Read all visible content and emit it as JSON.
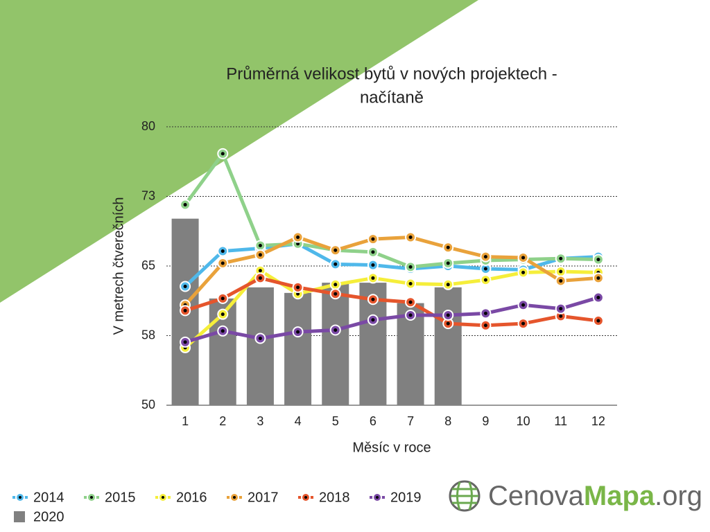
{
  "chart_data": {
    "type": "line",
    "title_lines": [
      "Průměrná velikost bytů v nových projektech -",
      "načítaně"
    ],
    "x_label": "Měsíc v roce",
    "y_label": "V metrech čtverečních",
    "categories": [
      "1",
      "2",
      "3",
      "4",
      "5",
      "6",
      "7",
      "8",
      "9",
      "10",
      "11",
      "12"
    ],
    "ylim": [
      50,
      80
    ],
    "yticks": [
      50,
      {
        "value": 57.5,
        "label": "58"
      },
      65,
      {
        "value": 72.5,
        "label": "73"
      },
      80
    ],
    "grid": true,
    "legend": "bottom-left",
    "series": [
      {
        "name": "2020",
        "type": "bar",
        "color": "#808080",
        "values": [
          70.1,
          61.5,
          62.7,
          62.1,
          63.2,
          63.2,
          61.0,
          62.7,
          null,
          null,
          null,
          null
        ]
      },
      {
        "name": "2014",
        "type": "line",
        "color": "#4fb8ea",
        "values": [
          62.8,
          66.6,
          66.9,
          67.4,
          65.2,
          65.1,
          64.7,
          65.0,
          64.7,
          64.6,
          65.8,
          66.0
        ]
      },
      {
        "name": "2015",
        "type": "line",
        "color": "#8fd18a",
        "values": [
          71.6,
          77.1,
          67.2,
          67.4,
          66.7,
          66.5,
          64.9,
          65.3,
          65.6,
          65.7,
          65.8,
          65.7
        ]
      },
      {
        "name": "2016",
        "type": "line",
        "color": "#f5ee3a",
        "values": [
          56.2,
          59.8,
          64.5,
          62.0,
          63.0,
          63.7,
          63.1,
          63.0,
          63.5,
          64.3,
          64.4,
          64.3
        ]
      },
      {
        "name": "2017",
        "type": "line",
        "color": "#e9a23b",
        "values": [
          60.8,
          65.3,
          66.2,
          68.1,
          66.7,
          67.9,
          68.1,
          67.0,
          66.0,
          65.9,
          63.4,
          63.7
        ]
      },
      {
        "name": "2018",
        "type": "line",
        "color": "#e5552c",
        "values": [
          60.2,
          61.5,
          63.7,
          62.7,
          62.0,
          61.4,
          61.1,
          58.8,
          58.6,
          58.8,
          59.6,
          59.1
        ]
      },
      {
        "name": "2019",
        "type": "line",
        "color": "#7a49a5",
        "values": [
          56.8,
          58.0,
          57.2,
          57.9,
          58.1,
          59.2,
          59.7,
          59.7,
          59.9,
          60.8,
          60.4,
          61.6
        ]
      }
    ]
  },
  "logo": {
    "parts": [
      "Cenova",
      "Mapa",
      ".org"
    ]
  }
}
